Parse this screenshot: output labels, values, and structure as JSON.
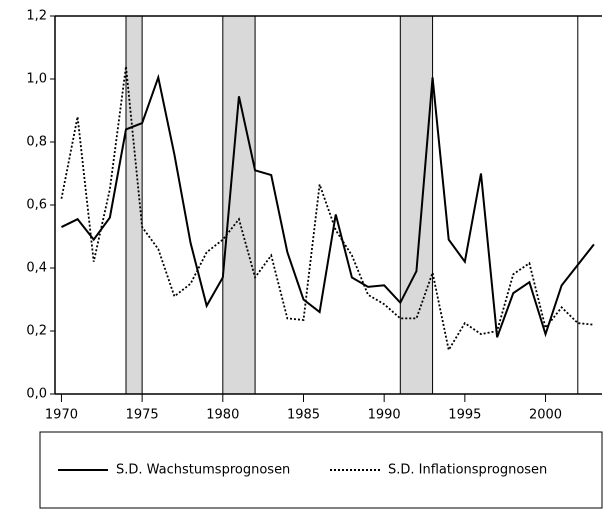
{
  "chart_data": {
    "type": "line",
    "x": [
      1970,
      1971,
      1972,
      1973,
      1974,
      1975,
      1976,
      1977,
      1978,
      1979,
      1980,
      1981,
      1982,
      1983,
      1984,
      1985,
      1986,
      1987,
      1988,
      1989,
      1990,
      1991,
      1992,
      1993,
      1994,
      1995,
      1996,
      1997,
      1998,
      1999,
      2000,
      2001,
      2002,
      2003
    ],
    "series": [
      {
        "name": "S.D. Wachstumsprognosen",
        "color": "#000000",
        "dash": "solid",
        "values": [
          0.53,
          0.555,
          0.49,
          0.56,
          0.84,
          0.86,
          1.005,
          0.76,
          0.48,
          0.28,
          0.37,
          0.945,
          0.71,
          0.695,
          0.45,
          0.3,
          0.26,
          0.57,
          0.37,
          0.34,
          0.345,
          0.29,
          0.39,
          1.005,
          0.49,
          0.42,
          0.7,
          0.18,
          0.32,
          0.355,
          0.19,
          0.345,
          0.41,
          0.475
        ]
      },
      {
        "name": "S.D. Inflationsprognosen",
        "color": "#000000",
        "dash": "dotted",
        "values": [
          0.62,
          0.88,
          0.42,
          0.65,
          1.04,
          0.53,
          0.46,
          0.31,
          0.35,
          0.45,
          0.49,
          0.555,
          0.37,
          0.44,
          0.24,
          0.235,
          0.665,
          0.52,
          0.44,
          0.315,
          0.285,
          0.24,
          0.24,
          0.385,
          0.14,
          0.225,
          0.19,
          0.2,
          0.38,
          0.415,
          0.21,
          0.275,
          0.225,
          0.22
        ]
      }
    ],
    "xlim": [
      1969.6,
      2003.5
    ],
    "xticks": [
      1970,
      1975,
      1980,
      1985,
      1990,
      1995,
      2000
    ],
    "ylim": [
      0,
      1.2
    ],
    "yticks": [
      {
        "value": 0,
        "label": "0,0"
      },
      {
        "value": 0.2,
        "label": "0,2"
      },
      {
        "value": 0.4,
        "label": "0,4"
      },
      {
        "value": 0.6,
        "label": "0,6"
      },
      {
        "value": 0.8,
        "label": "0,8"
      },
      {
        "value": 1.0,
        "label": "1,0"
      },
      {
        "value": 1.2,
        "label": "1,2"
      }
    ],
    "shaded": [
      [
        1974,
        1975
      ],
      [
        1980,
        1982
      ],
      [
        1991,
        1993
      ]
    ],
    "vline": 2002,
    "shade_color": "#d9d9d9"
  }
}
